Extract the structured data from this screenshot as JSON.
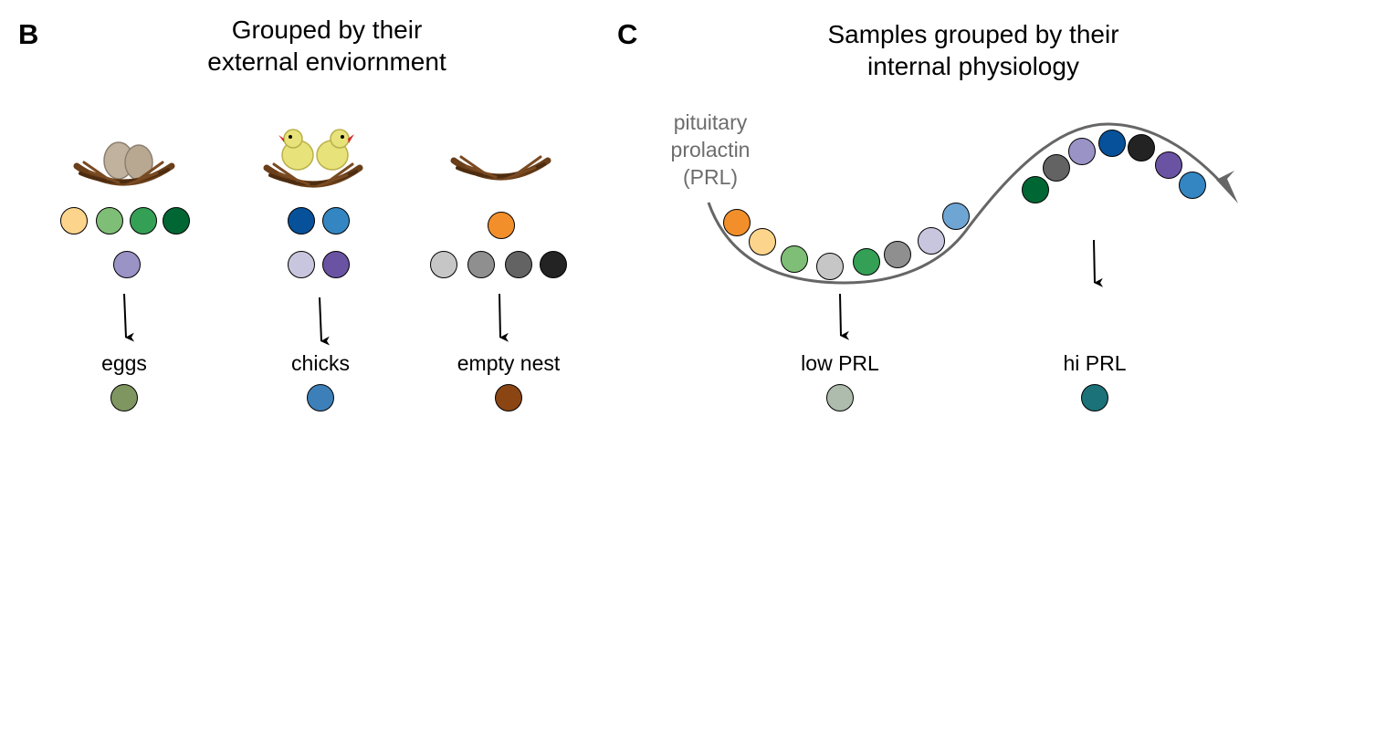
{
  "panel_b": {
    "letter": "B",
    "title_lines": [
      "Grouped by their",
      "external enviornment"
    ],
    "groups": [
      {
        "label": "eggs",
        "summary_color": "#7f9660",
        "sample_colors": [
          "#fdd48b",
          "#7fbe76",
          "#34a055",
          "#006734",
          "#9a93c6"
        ]
      },
      {
        "label": "chicks",
        "summary_color": "#3d80b9",
        "sample_colors": [
          "#07519a",
          "#3486c2",
          "#c8c5de",
          "#6b53a3"
        ]
      },
      {
        "label": "empty nest",
        "summary_color": "#8b4513",
        "sample_colors": [
          "#f28f2b",
          "#c6c6c6",
          "#8f8f8f",
          "#636363",
          "#232323"
        ]
      }
    ]
  },
  "panel_c": {
    "letter": "C",
    "title_lines": [
      "Samples grouped by their",
      "internal physiology"
    ],
    "curve_label_lines": [
      "pituitary",
      "prolactin",
      "(PRL)"
    ],
    "curve_sample_colors": [
      "#f28f2b",
      "#fdd48b",
      "#7fbe76",
      "#c6c6c6",
      "#34a055",
      "#8f8f8f",
      "#c8c5de",
      "#6ea5d3",
      "#006734",
      "#636363",
      "#9a93c6",
      "#07519a",
      "#232323",
      "#6b53a3",
      "#3486c2"
    ],
    "groups": [
      {
        "label": "low PRL",
        "summary_color": "#adbcac"
      },
      {
        "label": "hi PRL",
        "summary_color": "#1b7278"
      }
    ]
  }
}
